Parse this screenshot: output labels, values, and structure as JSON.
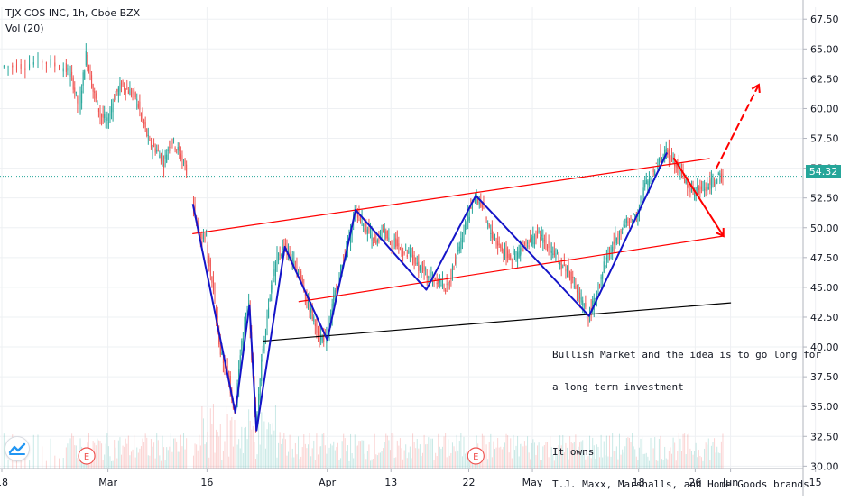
{
  "header": {
    "symbol_line": "TJX COS INC, 1h, Cboe BZX",
    "volume_line": "Vol (20)"
  },
  "current_price": {
    "label": "54.32",
    "value": 54.32,
    "color": "#26a69a"
  },
  "annotation": {
    "lines": [
      "Bullish Market and the idea is to go long for",
      "a long term investment",
      "",
      "It owns",
      "T.J. Maxx, Marshalls, and Home Goods brands"
    ]
  },
  "events": [
    {
      "label": "E",
      "x": 12
    },
    {
      "label": "E",
      "x": 67
    }
  ],
  "logo": {
    "icon": "tradingview-logo-icon"
  },
  "colors": {
    "up": "#26a69a",
    "down": "#ef5350",
    "channel": "#ff0000",
    "wave": "#1414c8",
    "support": "#000000",
    "grid": "#eef0f3",
    "text": "#131722"
  },
  "chart_data": {
    "type": "candlestick",
    "title": "TJX COS INC, 1h, Cboe BZX",
    "y_axis": {
      "range": [
        29.8,
        68.5
      ],
      "position": "right",
      "ticks": [
        30.0,
        32.5,
        35.0,
        37.5,
        40.0,
        42.5,
        45.0,
        47.5,
        50.0,
        52.5,
        55.0,
        57.5,
        60.0,
        62.5,
        65.0,
        67.5
      ],
      "tick_labels": [
        "30.00",
        "32.50",
        "35.00",
        "37.50",
        "40.00",
        "42.50",
        "45.00",
        "47.50",
        "50.00",
        "52.50",
        "55.00",
        "57.50",
        "60.00",
        "62.50",
        "65.00",
        "67.50"
      ]
    },
    "x_axis": {
      "range": [
        0,
        113
      ],
      "ticks": [
        {
          "x": 0,
          "label": "18"
        },
        {
          "x": 15,
          "label": "Mar"
        },
        {
          "x": 29,
          "label": "16"
        },
        {
          "x": 46,
          "label": "Apr"
        },
        {
          "x": 55,
          "label": "13"
        },
        {
          "x": 66,
          "label": "22"
        },
        {
          "x": 75,
          "label": "May"
        },
        {
          "x": 90,
          "label": "18"
        },
        {
          "x": 98,
          "label": "26"
        },
        {
          "x": 103,
          "label": "Jun"
        },
        {
          "x": 115,
          "label": "15"
        }
      ]
    },
    "grid": true,
    "anchors": [
      [
        0,
        63.5
      ],
      [
        3,
        63.6
      ],
      [
        6,
        64.0
      ],
      [
        9,
        63.4
      ],
      [
        10,
        62.5
      ],
      [
        11,
        60.0
      ],
      [
        12,
        64.5
      ],
      [
        13,
        61.5
      ],
      [
        14,
        59.5
      ],
      [
        15,
        58.8
      ],
      [
        16,
        61.0
      ],
      [
        17,
        62.0
      ],
      [
        18,
        61.5
      ],
      [
        19,
        61.0
      ],
      [
        20,
        59.0
      ],
      [
        21,
        57.0
      ],
      [
        22,
        56.5
      ],
      [
        23,
        55.5
      ],
      [
        24,
        57.5
      ],
      [
        25,
        56.5
      ],
      [
        26,
        55.2
      ],
      [
        27,
        52.0
      ],
      [
        28,
        49.5
      ],
      [
        29,
        49.0
      ],
      [
        30,
        44.5
      ],
      [
        31,
        39.5
      ],
      [
        32,
        37.8
      ],
      [
        33,
        34.5
      ],
      [
        34,
        40.5
      ],
      [
        35,
        43.5
      ],
      [
        36,
        33.0
      ],
      [
        37,
        40.0
      ],
      [
        38,
        44.5
      ],
      [
        39,
        47.5
      ],
      [
        40,
        48.4
      ],
      [
        41,
        47.2
      ],
      [
        42,
        46.5
      ],
      [
        43,
        44.5
      ],
      [
        44,
        42.5
      ],
      [
        45,
        41.0
      ],
      [
        46,
        40.6
      ],
      [
        47,
        44.0
      ],
      [
        48,
        46.5
      ],
      [
        49,
        48.5
      ],
      [
        50,
        51.5
      ],
      [
        51,
        50.5
      ],
      [
        52,
        49.5
      ],
      [
        53,
        48.5
      ],
      [
        54,
        49.8
      ],
      [
        55,
        49.0
      ],
      [
        56,
        48.5
      ],
      [
        57,
        47.8
      ],
      [
        58,
        47.5
      ],
      [
        59,
        46.8
      ],
      [
        60,
        46.2
      ],
      [
        61,
        46.0
      ],
      [
        62,
        45.5
      ],
      [
        63,
        44.8
      ],
      [
        64,
        47.0
      ],
      [
        65,
        49.0
      ],
      [
        66,
        51.0
      ],
      [
        67,
        52.7
      ],
      [
        68,
        51.8
      ],
      [
        69,
        49.8
      ],
      [
        70,
        48.8
      ],
      [
        71,
        48.0
      ],
      [
        72,
        47.5
      ],
      [
        73,
        47.8
      ],
      [
        74,
        48.6
      ],
      [
        75,
        49.0
      ],
      [
        76,
        49.3
      ],
      [
        77,
        48.7
      ],
      [
        78,
        48.0
      ],
      [
        79,
        47.0
      ],
      [
        80,
        46.5
      ],
      [
        81,
        45.2
      ],
      [
        82,
        43.8
      ],
      [
        83,
        42.6
      ],
      [
        84,
        44.0
      ],
      [
        85,
        46.5
      ],
      [
        86,
        48.0
      ],
      [
        87,
        49.2
      ],
      [
        88,
        50.2
      ],
      [
        89,
        50.6
      ],
      [
        90,
        51.5
      ],
      [
        91,
        53.5
      ],
      [
        92,
        54.5
      ],
      [
        93,
        55.8
      ],
      [
        94,
        56.3
      ],
      [
        95,
        55.8
      ],
      [
        96,
        54.8
      ],
      [
        97,
        53.5
      ],
      [
        98,
        53.0
      ],
      [
        99,
        53.2
      ],
      [
        100,
        53.6
      ],
      [
        101,
        54.0
      ],
      [
        102,
        54.32
      ]
    ],
    "gaps": [
      [
        26,
        27
      ]
    ],
    "volume": {
      "visible": true
    },
    "drawings": {
      "upper_channel": {
        "from": [
          27,
          49.5
        ],
        "to": [
          100,
          55.8
        ],
        "color": "#ff0000"
      },
      "lower_channel": {
        "from": [
          42,
          43.8
        ],
        "to": [
          102,
          49.3
        ],
        "color": "#ff0000"
      },
      "support": {
        "from": [
          37,
          40.5
        ],
        "to": [
          103,
          43.7
        ],
        "color": "#000000"
      },
      "wave": {
        "points": [
          [
            27,
            52.0
          ],
          [
            33,
            34.5
          ],
          [
            35,
            43.5
          ],
          [
            36,
            33.0
          ],
          [
            40,
            48.4
          ],
          [
            46,
            40.6
          ],
          [
            50,
            51.5
          ],
          [
            60,
            44.8
          ],
          [
            67,
            52.7
          ],
          [
            83,
            42.6
          ],
          [
            94,
            56.3
          ]
        ],
        "color": "#1414c8"
      },
      "arrow_down": {
        "from": [
          95,
          55.8
        ],
        "to": [
          102,
          49.3
        ],
        "color": "#ff0000"
      },
      "arrow_up_dashed": {
        "from": [
          101,
          55.0
        ],
        "to": [
          107,
          62.0
        ],
        "color": "#ff0000"
      }
    }
  }
}
